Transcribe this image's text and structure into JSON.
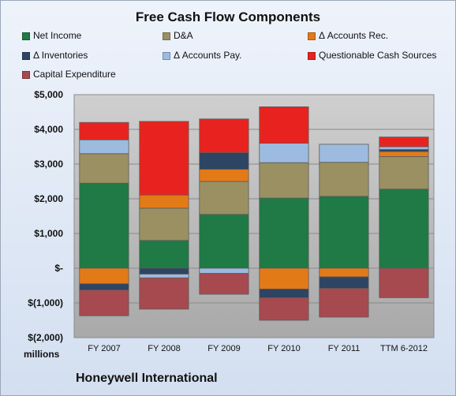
{
  "chart_data": {
    "type": "bar",
    "stacked": true,
    "title": "Free Cash Flow Components",
    "xlabel": "",
    "ylabel": "",
    "units_label": "millions",
    "company": "Honeywell International",
    "categories": [
      "FY 2007",
      "FY 2008",
      "FY 2009",
      "FY 2010",
      "FY 2011",
      "TTM 6-2012"
    ],
    "ylim": [
      -2000,
      5000
    ],
    "yticks": [
      5000,
      4000,
      3000,
      2000,
      1000,
      0,
      -1000,
      -2000
    ],
    "ytick_labels": [
      "$5,000",
      "$4,000",
      "$3,000",
      "$2,000",
      "$1,000",
      "$-",
      "$(1,000)",
      "$(2,000)"
    ],
    "grid": true,
    "legend_position": "top",
    "series": [
      {
        "name": "Net Income",
        "color": "#1f7a45",
        "values": [
          2450,
          800,
          1550,
          2020,
          2070,
          2280
        ]
      },
      {
        "name": "D&A",
        "color": "#9a9062",
        "values": [
          850,
          930,
          950,
          1020,
          980,
          940
        ]
      },
      {
        "name": "Δ Accounts Rec.",
        "color": "#e37a18",
        "values": [
          -450,
          380,
          350,
          -600,
          -250,
          140
        ]
      },
      {
        "name": "Δ Inventories",
        "color": "#2e4463",
        "values": [
          -180,
          -170,
          480,
          -250,
          -330,
          60
        ]
      },
      {
        "name": "Δ Accounts Pay.",
        "color": "#9cbbdf",
        "values": [
          400,
          -110,
          -150,
          560,
          520,
          80
        ]
      },
      {
        "name": "Questionable Cash Sources",
        "color": "#e8231f",
        "values": [
          500,
          2120,
          970,
          1050,
          0,
          280
        ]
      },
      {
        "name": "Capital Expenditure",
        "color": "#a64a4f",
        "values": [
          -740,
          -900,
          -600,
          -650,
          -830,
          -850
        ]
      }
    ]
  }
}
